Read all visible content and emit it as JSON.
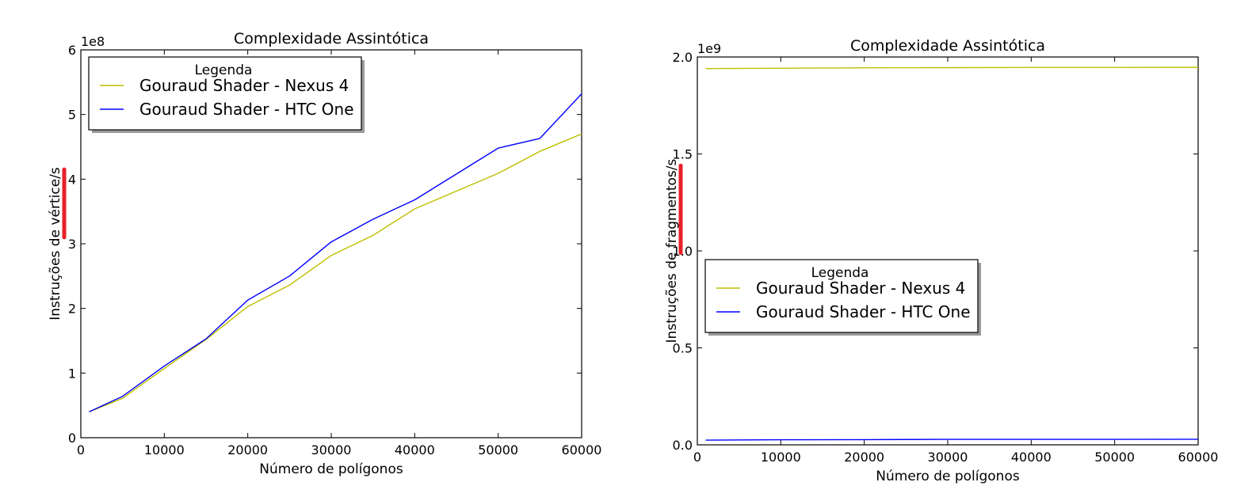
{
  "colors": {
    "nexus": "#bfbf00",
    "htc": "#0000ff",
    "highlight": "#e8202a"
  },
  "chart_data": [
    {
      "type": "line",
      "title": "Complexidade Assintótica",
      "xlabel": "Número de polígonos",
      "ylabel": "Instruções de vértice/s",
      "y_exponent_label": "1e8",
      "xlim": [
        0,
        60000
      ],
      "ylim": [
        0,
        6
      ],
      "x_ticks": [
        0,
        10000,
        20000,
        30000,
        40000,
        50000,
        60000
      ],
      "x_tick_labels": [
        "0",
        "10000",
        "20000",
        "30000",
        "40000",
        "50000",
        "60000"
      ],
      "y_ticks": [
        0,
        1,
        2,
        3,
        4,
        5,
        6
      ],
      "y_tick_labels": [
        "0",
        "1",
        "2",
        "3",
        "4",
        "5",
        "6"
      ],
      "legend": {
        "title": "Legenda",
        "position": "upper-left"
      },
      "series": [
        {
          "name": "Gouraud Shader - Nexus 4",
          "color_key": "nexus",
          "x": [
            1000,
            5000,
            10000,
            15000,
            20000,
            25000,
            30000,
            35000,
            40000,
            50000,
            55000,
            60000
          ],
          "y": [
            0.4,
            0.61,
            1.07,
            1.52,
            2.03,
            2.36,
            2.82,
            3.13,
            3.54,
            4.09,
            4.43,
            4.7
          ]
        },
        {
          "name": "Gouraud Shader - HTC One",
          "color_key": "htc",
          "x": [
            1000,
            5000,
            10000,
            15000,
            20000,
            25000,
            30000,
            35000,
            40000,
            50000,
            55000,
            60000
          ],
          "y": [
            0.4,
            0.64,
            1.11,
            1.53,
            2.13,
            2.5,
            3.03,
            3.38,
            3.68,
            4.48,
            4.63,
            5.32
          ]
        }
      ],
      "highlight": {
        "y_from": 3.1,
        "y_to": 4.15
      }
    },
    {
      "type": "line",
      "title": "Complexidade Assintótica",
      "xlabel": "Número de polígonos",
      "ylabel": "Instruções de fragmentos/s",
      "y_exponent_label": "1e9",
      "xlim": [
        0,
        60000
      ],
      "ylim": [
        0,
        2.0
      ],
      "x_ticks": [
        0,
        10000,
        20000,
        30000,
        40000,
        50000,
        60000
      ],
      "x_tick_labels": [
        "0",
        "10000",
        "20000",
        "30000",
        "40000",
        "50000",
        "60000"
      ],
      "y_ticks": [
        0,
        0.5,
        1.0,
        1.5,
        2.0
      ],
      "y_tick_labels": [
        "0.0",
        "0.5",
        "1.0",
        "1.5",
        "2.0"
      ],
      "legend": {
        "title": "Legenda",
        "position": "center-left"
      },
      "series": [
        {
          "name": "Gouraud Shader - Nexus 4",
          "color_key": "nexus",
          "x": [
            1000,
            10000,
            20000,
            30000,
            40000,
            50000,
            60000
          ],
          "y": [
            1.94,
            1.942,
            1.944,
            1.945,
            1.946,
            1.946,
            1.947
          ]
        },
        {
          "name": "Gouraud Shader - HTC One",
          "color_key": "htc",
          "x": [
            1000,
            10000,
            20000,
            30000,
            40000,
            50000,
            60000
          ],
          "y": [
            0.024,
            0.026,
            0.027,
            0.028,
            0.028,
            0.028,
            0.029
          ]
        }
      ],
      "highlight": {
        "y_from": 0.99,
        "y_to": 1.44
      }
    }
  ]
}
